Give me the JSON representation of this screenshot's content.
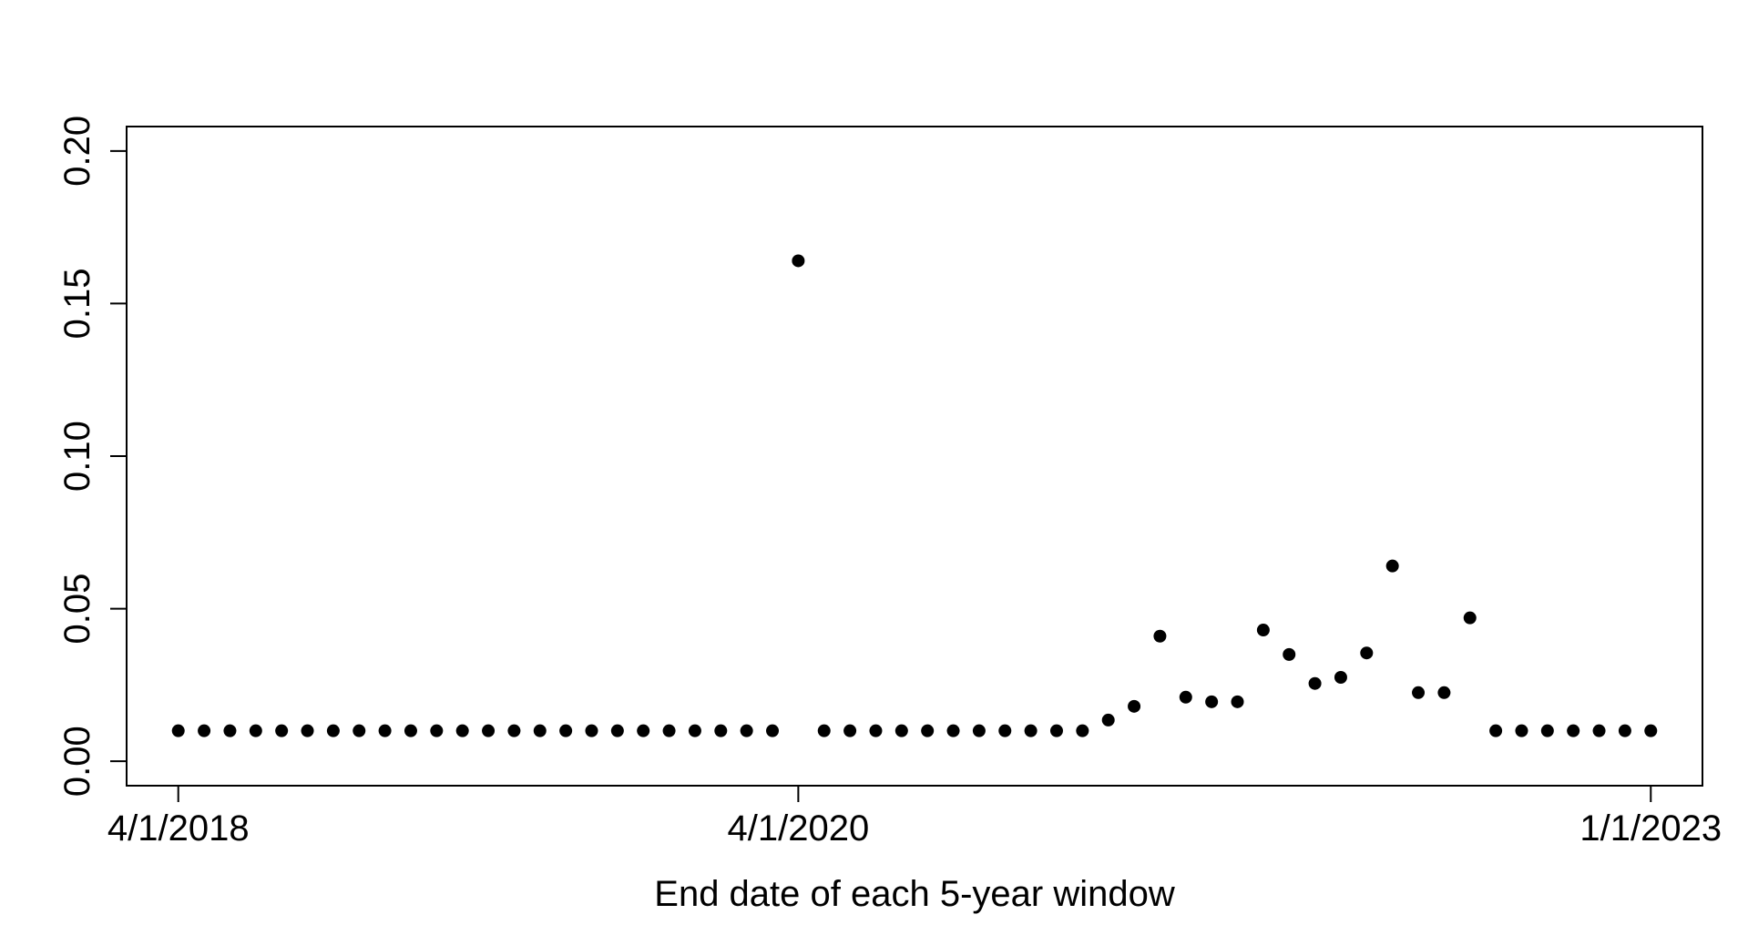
{
  "chart_data": {
    "type": "scatter",
    "title": "",
    "xlabel": "End date of each 5-year window",
    "ylabel": "",
    "x_ticks": [
      "4/1/2018",
      "4/1/2020",
      "1/1/2023"
    ],
    "x_start": "4/1/2018",
    "x_step": "1 month",
    "xlim": [
      "2/1/2018",
      "3/1/2023"
    ],
    "ylim": [
      -0.008,
      0.208
    ],
    "y_ticks": [
      "0.00",
      "0.05",
      "0.10",
      "0.15",
      "0.20"
    ],
    "y_tick_values": [
      0.0,
      0.05,
      0.1,
      0.15,
      0.2
    ],
    "grid": false,
    "legend": "none",
    "point_color": "#000000",
    "series": [
      {
        "values": [
          0.01,
          0.01,
          0.01,
          0.01,
          0.01,
          0.01,
          0.01,
          0.01,
          0.01,
          0.01,
          0.01,
          0.01,
          0.01,
          0.01,
          0.01,
          0.01,
          0.01,
          0.01,
          0.01,
          0.01,
          0.01,
          0.01,
          0.01,
          0.01,
          0.164,
          0.01,
          0.01,
          0.01,
          0.01,
          0.01,
          0.01,
          0.01,
          0.01,
          0.01,
          0.01,
          0.01,
          0.0135,
          0.018,
          0.041,
          0.021,
          0.0195,
          0.0195,
          0.043,
          0.035,
          0.0255,
          0.0275,
          0.0355,
          0.064,
          0.0225,
          0.0225,
          0.047,
          0.01,
          0.01,
          0.01,
          0.01,
          0.01,
          0.01,
          0.01
        ]
      }
    ]
  }
}
